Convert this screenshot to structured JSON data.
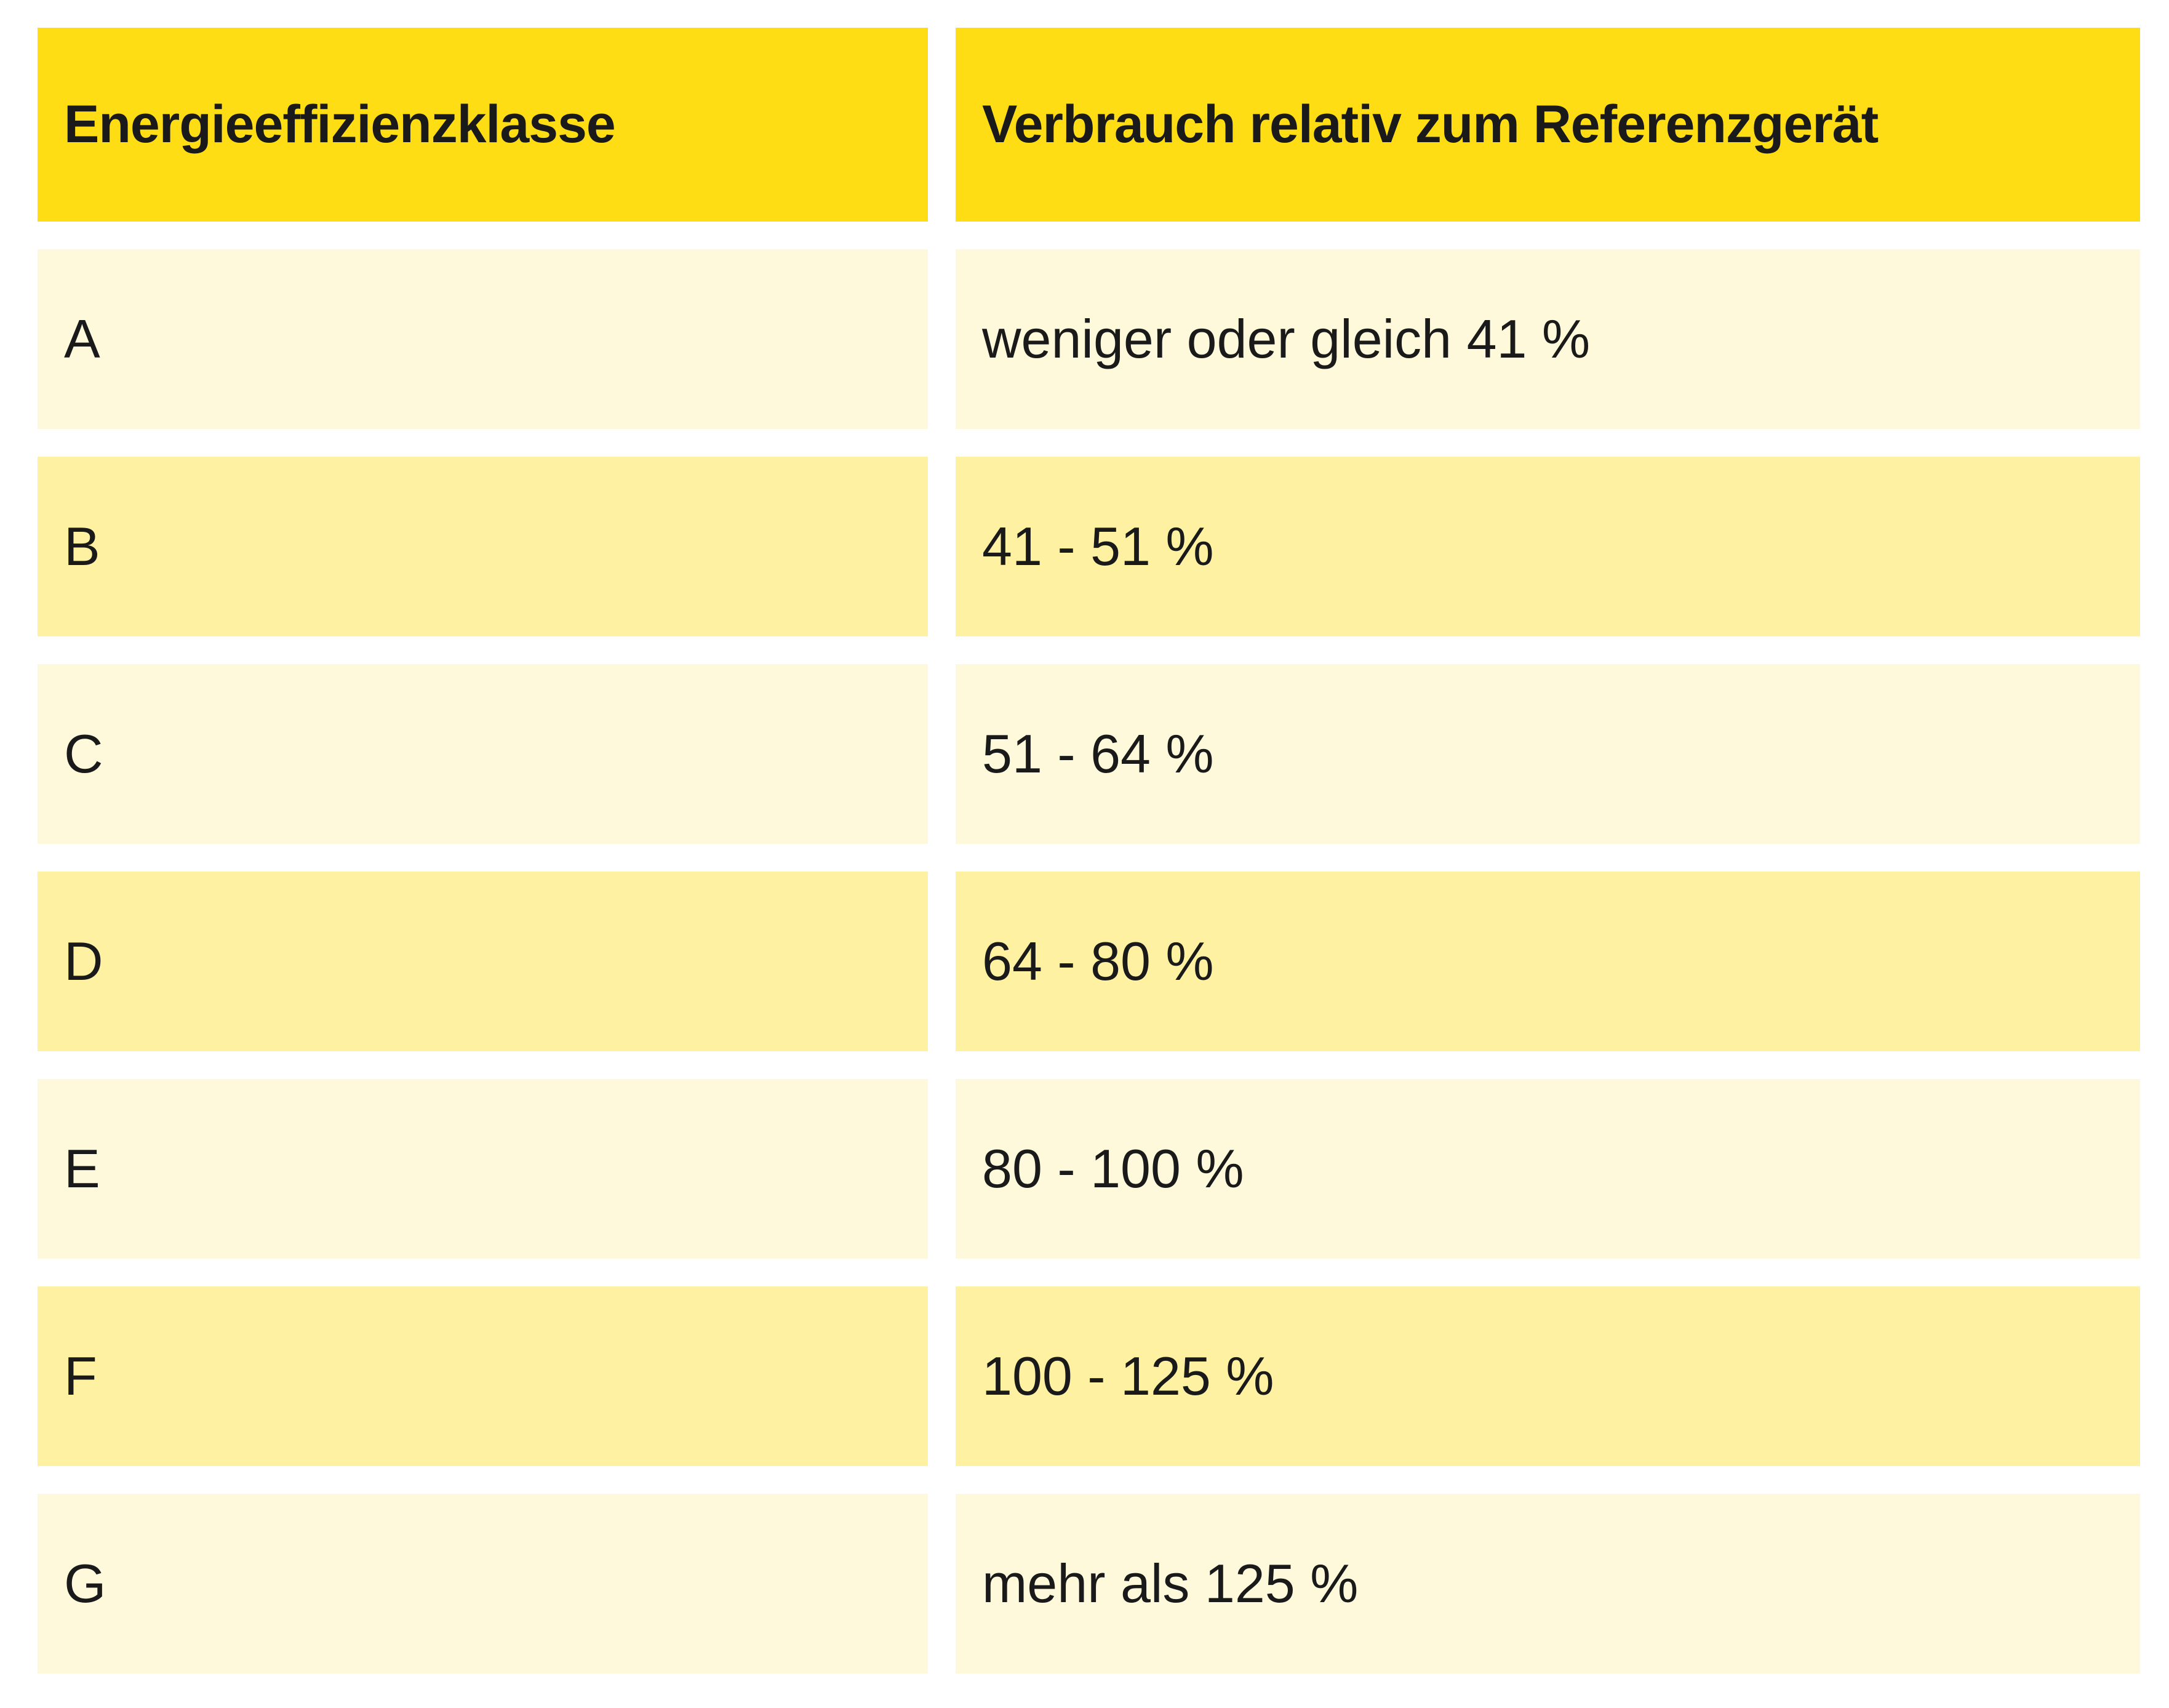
{
  "table": {
    "header": [
      "Energieeffizienzklasse",
      "Verbrauch relativ zum Referenzgerät"
    ],
    "rows": [
      [
        "A",
        "weniger oder gleich 41 %"
      ],
      [
        "B",
        "41 - 51 %"
      ],
      [
        "C",
        "51 - 64 %"
      ],
      [
        "D",
        "64 - 80 %"
      ],
      [
        "E",
        "80 - 100 %"
      ],
      [
        "F",
        "100 - 125 %"
      ],
      [
        "G",
        "mehr als 125 %"
      ]
    ]
  }
}
